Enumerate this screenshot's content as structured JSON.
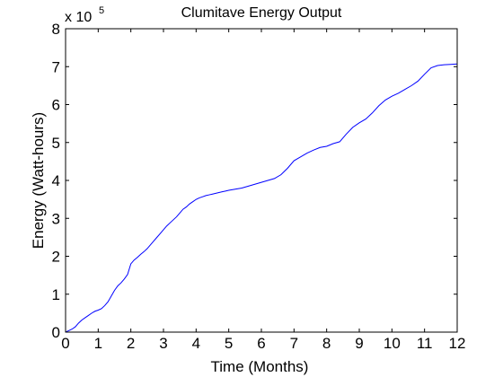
{
  "chart_data": {
    "type": "line",
    "title": "Clumitave Energy Output",
    "xlabel": "Time (Months)",
    "ylabel": "Energy (Watt-hours)",
    "y_exponent_base": "x 10",
    "y_exponent_power": "5",
    "xlim": [
      0,
      12
    ],
    "ylim": [
      0,
      8
    ],
    "y_scale_factor": 100000,
    "x_ticks": [
      0,
      1,
      2,
      3,
      4,
      5,
      6,
      7,
      8,
      9,
      10,
      11,
      12
    ],
    "x_tick_labels": [
      "0",
      "1",
      "2",
      "3",
      "4",
      "5",
      "6",
      "7",
      "8",
      "9",
      "10",
      "11",
      "12"
    ],
    "y_ticks": [
      0,
      1,
      2,
      3,
      4,
      5,
      6,
      7,
      8
    ],
    "y_tick_labels": [
      "0",
      "1",
      "2",
      "3",
      "4",
      "5",
      "6",
      "7",
      "8"
    ],
    "grid": false,
    "line_color": "#0000ff",
    "axes_color": "#000000",
    "series": [
      {
        "x": [
          0,
          0.1,
          0.2,
          0.3,
          0.4,
          0.5,
          0.6,
          0.7,
          0.8,
          0.9,
          1.0,
          1.1,
          1.2,
          1.3,
          1.4,
          1.5,
          1.6,
          1.7,
          1.8,
          1.9,
          2.0,
          2.1,
          2.2,
          2.3,
          2.4,
          2.5,
          2.6,
          2.7,
          2.8,
          2.9,
          3.0,
          3.1,
          3.2,
          3.3,
          3.4,
          3.5,
          3.6,
          3.7,
          3.8,
          3.9,
          4.0,
          4.1,
          4.2,
          4.3,
          4.4,
          4.5,
          4.6,
          4.7,
          4.8,
          4.9,
          5.0,
          5.2,
          5.4,
          5.6,
          5.8,
          6.0,
          6.2,
          6.4,
          6.6,
          6.8,
          7.0,
          7.2,
          7.4,
          7.6,
          7.8,
          8.0,
          8.2,
          8.4,
          8.6,
          8.8,
          9.0,
          9.2,
          9.4,
          9.6,
          9.8,
          10.0,
          10.2,
          10.4,
          10.6,
          10.8,
          11.0,
          11.2,
          11.4,
          11.6,
          11.8,
          12.0
        ],
        "y": [
          0,
          0.04,
          0.08,
          0.14,
          0.24,
          0.32,
          0.38,
          0.44,
          0.5,
          0.55,
          0.58,
          0.62,
          0.7,
          0.8,
          0.95,
          1.1,
          1.22,
          1.3,
          1.4,
          1.52,
          1.8,
          1.9,
          1.97,
          2.05,
          2.12,
          2.2,
          2.3,
          2.4,
          2.5,
          2.6,
          2.7,
          2.8,
          2.88,
          2.96,
          3.04,
          3.14,
          3.24,
          3.3,
          3.38,
          3.44,
          3.5,
          3.54,
          3.57,
          3.6,
          3.62,
          3.64,
          3.66,
          3.68,
          3.7,
          3.72,
          3.74,
          3.77,
          3.8,
          3.85,
          3.9,
          3.95,
          4.0,
          4.05,
          4.15,
          4.32,
          4.52,
          4.62,
          4.72,
          4.8,
          4.87,
          4.9,
          4.97,
          5.02,
          5.22,
          5.4,
          5.52,
          5.62,
          5.78,
          5.97,
          6.12,
          6.22,
          6.3,
          6.4,
          6.5,
          6.62,
          6.8,
          6.97,
          7.03,
          7.05,
          7.06,
          7.07
        ]
      }
    ]
  }
}
